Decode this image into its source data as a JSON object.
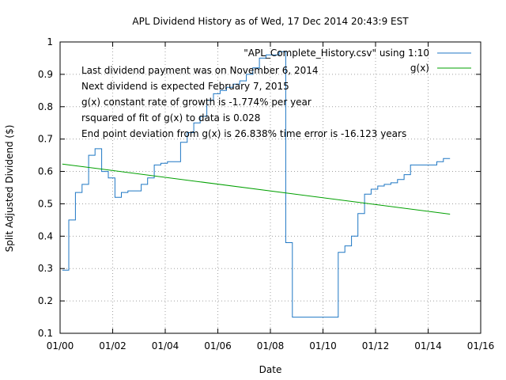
{
  "chart_data": {
    "type": "line",
    "title": "APL Dividend History as of Wed, 17 Dec 2014 20:43:9 EST",
    "xlabel": "Date",
    "ylabel": "Split Adjusted Dividend ($)",
    "xlim": [
      "2000-01-01",
      "2016-01-01"
    ],
    "ylim": [
      0.1,
      1.0
    ],
    "x_ticks": [
      {
        "date": "2000-01-01",
        "label": "01/00"
      },
      {
        "date": "2002-01-01",
        "label": "01/02"
      },
      {
        "date": "2004-01-01",
        "label": "01/04"
      },
      {
        "date": "2006-01-01",
        "label": "01/06"
      },
      {
        "date": "2008-01-01",
        "label": "01/08"
      },
      {
        "date": "2010-01-01",
        "label": "01/10"
      },
      {
        "date": "2012-01-01",
        "label": "01/12"
      },
      {
        "date": "2014-01-01",
        "label": "01/14"
      },
      {
        "date": "2016-01-01",
        "label": "01/16"
      }
    ],
    "y_ticks": [
      {
        "value": 0.1,
        "label": "0.1"
      },
      {
        "value": 0.2,
        "label": "0.2"
      },
      {
        "value": 0.3,
        "label": "0.3"
      },
      {
        "value": 0.4,
        "label": "0.4"
      },
      {
        "value": 0.5,
        "label": "0.5"
      },
      {
        "value": 0.6,
        "label": "0.6"
      },
      {
        "value": 0.7,
        "label": "0.7"
      },
      {
        "value": 0.8,
        "label": "0.8"
      },
      {
        "value": 0.9,
        "label": "0.9"
      },
      {
        "value": 1.0,
        "label": "1"
      }
    ],
    "grid": true,
    "legend_position": "top-right",
    "series": [
      {
        "name": "\"APL_Complete_History.csv\" using 1:10",
        "color": "#1f77c4",
        "style": "steps",
        "x": [
          "2000-02-01",
          "2000-05-01",
          "2000-08-01",
          "2000-11-01",
          "2001-02-01",
          "2001-05-01",
          "2001-08-01",
          "2001-11-01",
          "2002-02-01",
          "2002-05-01",
          "2002-08-01",
          "2002-11-01",
          "2003-02-01",
          "2003-05-01",
          "2003-08-01",
          "2003-11-01",
          "2004-02-01",
          "2004-05-01",
          "2004-08-01",
          "2004-11-01",
          "2005-02-01",
          "2005-05-01",
          "2005-08-01",
          "2005-11-01",
          "2006-02-01",
          "2006-05-01",
          "2006-08-01",
          "2006-11-01",
          "2007-02-01",
          "2007-05-01",
          "2007-08-01",
          "2007-11-01",
          "2008-02-01",
          "2008-05-01",
          "2008-08-01",
          "2008-11-01",
          "2009-02-01",
          "2009-05-01",
          "2009-08-01",
          "2009-11-01",
          "2010-02-01",
          "2010-05-01",
          "2010-08-01",
          "2010-11-01",
          "2011-02-01",
          "2011-05-01",
          "2011-08-01",
          "2011-11-01",
          "2012-02-01",
          "2012-05-01",
          "2012-08-01",
          "2012-11-01",
          "2013-02-01",
          "2013-05-01",
          "2013-08-01",
          "2013-11-01",
          "2014-02-01",
          "2014-05-01",
          "2014-08-01",
          "2014-11-01"
        ],
        "y": [
          0.295,
          0.45,
          0.535,
          0.56,
          0.65,
          0.67,
          0.6,
          0.58,
          0.52,
          0.535,
          0.54,
          0.54,
          0.56,
          0.58,
          0.62,
          0.625,
          0.63,
          0.63,
          0.69,
          0.72,
          0.75,
          0.77,
          0.82,
          0.84,
          0.85,
          0.86,
          0.87,
          0.88,
          0.9,
          0.92,
          0.95,
          0.96,
          0.96,
          0.97,
          0.38,
          0.15,
          0.15,
          0.15,
          0.15,
          0.15,
          0.15,
          0.15,
          0.35,
          0.37,
          0.4,
          0.47,
          0.53,
          0.545,
          0.555,
          0.56,
          0.565,
          0.575,
          0.59,
          0.62,
          0.62,
          0.62,
          0.62,
          0.63,
          0.64,
          0.64
        ]
      },
      {
        "name": "g(x)",
        "color": "#00a000",
        "style": "line",
        "x": [
          "2000-02-01",
          "2014-11-01"
        ],
        "y": [
          0.623,
          0.468
        ]
      }
    ],
    "annotations": [
      "Last dividend payment was on November 6, 2014",
      "Next dividend is expected February 7, 2015",
      "g(x) constant rate of growth is -1.774% per year",
      "rsquared of fit of g(x) to data is  0.028",
      "End point deviation from g(x) is   26.838%  time error is  -16.123 years"
    ]
  }
}
